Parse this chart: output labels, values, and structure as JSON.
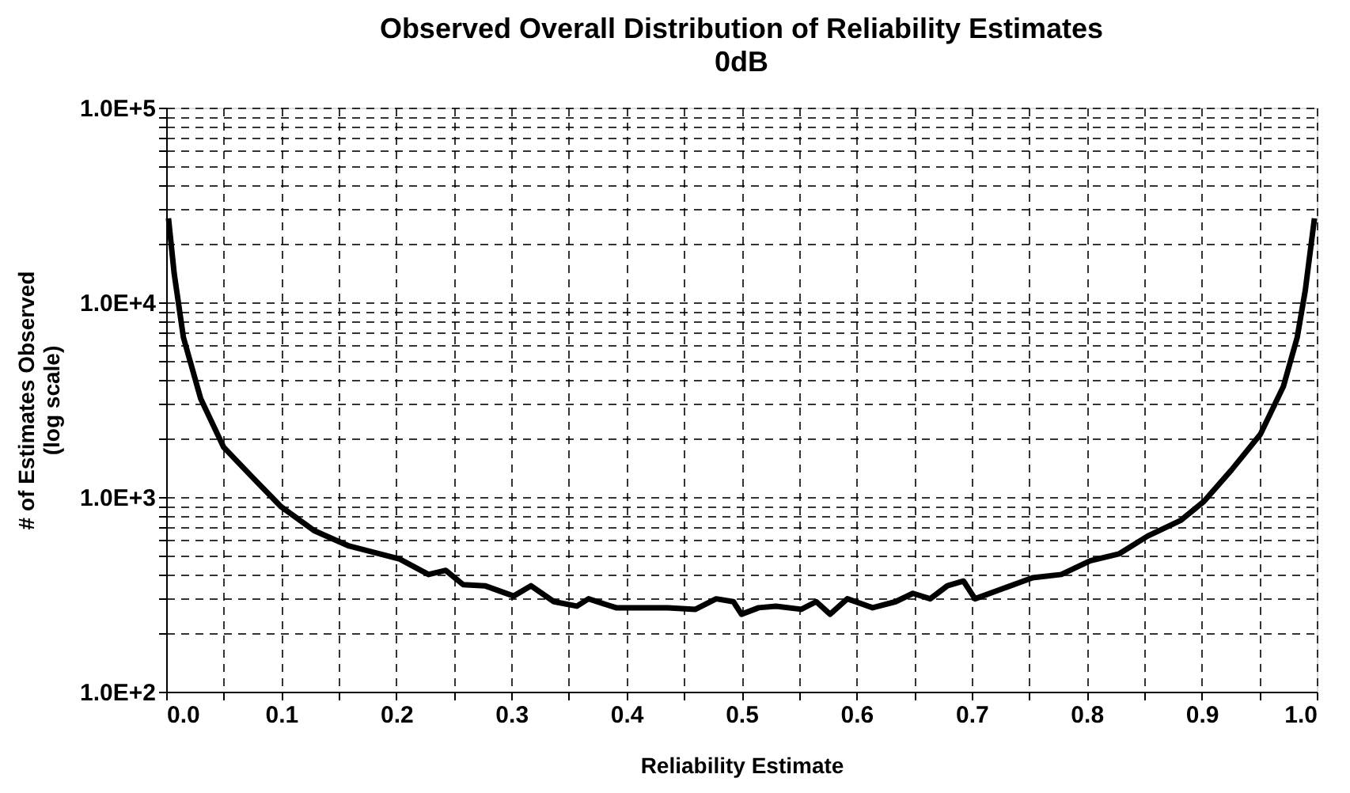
{
  "chart_data": {
    "type": "line",
    "title": "Observed Overall Distribution of Reliability Estimates",
    "subtitle": "0dB",
    "xlabel": "Reliability Estimate",
    "ylabel": "# of Estimates Observed\n(log scale)",
    "log": "y",
    "grid": true,
    "marker": "none",
    "line_style": "solid",
    "xlim": [
      0,
      1
    ],
    "ylim": [
      100,
      100000
    ],
    "xticks": [
      {
        "value": 0,
        "label": "0.0"
      },
      {
        "value": 0.05,
        "label": null
      },
      0.1,
      {
        "value": 0.15,
        "label": null
      },
      0.2,
      {
        "value": 0.25,
        "label": null
      },
      0.3,
      {
        "value": 0.35,
        "label": null
      },
      0.4,
      {
        "value": 0.45,
        "label": null
      },
      0.5,
      {
        "value": 0.55,
        "label": null
      },
      0.6,
      {
        "value": 0.65,
        "label": null
      },
      0.7,
      {
        "value": 0.75,
        "label": null
      },
      0.8,
      {
        "value": 0.85,
        "label": null
      },
      0.9,
      {
        "value": 0.95,
        "label": null
      },
      {
        "value": 1,
        "label": "1.0"
      }
    ],
    "yticks": [
      {
        "value": 100,
        "label": "1.0E+2"
      },
      {
        "value": 200,
        "label": null
      },
      {
        "value": 300,
        "label": null
      },
      {
        "value": 400,
        "label": null
      },
      {
        "value": 500,
        "label": null
      },
      {
        "value": 600,
        "label": null
      },
      {
        "value": 700,
        "label": null
      },
      {
        "value": 800,
        "label": null
      },
      {
        "value": 900,
        "label": null
      },
      {
        "value": 1000,
        "label": "1.0E+3"
      },
      {
        "value": 2000,
        "label": null
      },
      {
        "value": 3000,
        "label": null
      },
      {
        "value": 4000,
        "label": null
      },
      {
        "value": 5000,
        "label": null
      },
      {
        "value": 6000,
        "label": null
      },
      {
        "value": 7000,
        "label": null
      },
      {
        "value": 8000,
        "label": null
      },
      {
        "value": 9000,
        "label": null
      },
      {
        "value": 10000,
        "label": "1.0E+4"
      },
      {
        "value": 20000,
        "label": null
      },
      {
        "value": 30000,
        "label": null
      },
      {
        "value": 40000,
        "label": null
      },
      {
        "value": 50000,
        "label": null
      },
      {
        "value": 60000,
        "label": null
      },
      {
        "value": 70000,
        "label": null
      },
      {
        "value": 80000,
        "label": null
      },
      {
        "value": 90000,
        "label": null
      },
      {
        "value": 100000,
        "label": "1.0E+5"
      }
    ],
    "series": [
      {
        "color": "#000000",
        "x": [
          0.002,
          0.007,
          0.015,
          0.03,
          0.05,
          0.074,
          0.1,
          0.129,
          0.159,
          0.203,
          0.228,
          0.243,
          0.258,
          0.277,
          0.302,
          0.317,
          0.337,
          0.357,
          0.367,
          0.391,
          0.436,
          0.46,
          0.478,
          0.493,
          0.5,
          0.515,
          0.53,
          0.552,
          0.565,
          0.577,
          0.592,
          0.614,
          0.634,
          0.649,
          0.664,
          0.679,
          0.693,
          0.703,
          0.728,
          0.753,
          0.778,
          0.803,
          0.828,
          0.853,
          0.882,
          0.902,
          0.926,
          0.951,
          0.971,
          0.983,
          0.99,
          0.998
        ],
        "values": [
          27000,
          14000,
          6600,
          3200,
          1800,
          1280,
          890,
          670,
          560,
          480,
          400,
          420,
          355,
          350,
          310,
          350,
          290,
          275,
          300,
          270,
          270,
          265,
          300,
          290,
          250,
          270,
          275,
          265,
          290,
          250,
          300,
          270,
          290,
          320,
          300,
          350,
          370,
          300,
          340,
          385,
          400,
          470,
          510,
          630,
          760,
          950,
          1380,
          2100,
          3700,
          6600,
          11500,
          27000
        ]
      }
    ]
  }
}
